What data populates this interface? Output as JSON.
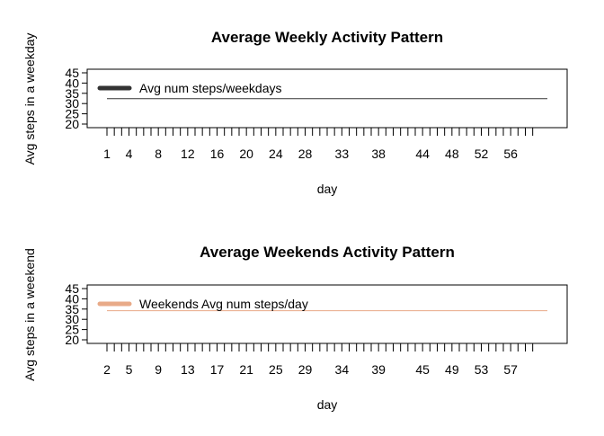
{
  "chart_data": [
    {
      "type": "line",
      "title": "Average Weekly Activity Pattern",
      "xlabel": "day",
      "ylabel": "Avg steps in a weekday",
      "x_ticks_shown": [
        1,
        4,
        8,
        12,
        16,
        20,
        24,
        28,
        33,
        38,
        44,
        48,
        52,
        56
      ],
      "y_ticks": [
        20,
        25,
        30,
        35,
        40,
        45
      ],
      "xlim": [
        1,
        61
      ],
      "ylim": [
        20,
        45
      ],
      "grid": false,
      "legend_position": "top-left",
      "series": [
        {
          "name": "Avg num steps/weekdays",
          "color": "#333333",
          "x": [
            1,
            61
          ],
          "values": [
            32.4,
            32.4
          ]
        }
      ]
    },
    {
      "type": "line",
      "title": "Average Weekends Activity Pattern",
      "xlabel": "day",
      "ylabel": "Avg steps in a weekend",
      "x_ticks_shown": [
        2,
        5,
        9,
        13,
        17,
        21,
        25,
        29,
        34,
        39,
        45,
        49,
        53,
        57
      ],
      "y_ticks": [
        20,
        25,
        30,
        35,
        40,
        45
      ],
      "xlim": [
        2,
        62
      ],
      "ylim": [
        20,
        45
      ],
      "grid": false,
      "legend_position": "top-left",
      "series": [
        {
          "name": "Weekends Avg num steps/day",
          "color": "#e8aa88",
          "x": [
            2,
            62
          ],
          "values": [
            34.2,
            34.2
          ]
        }
      ]
    }
  ]
}
